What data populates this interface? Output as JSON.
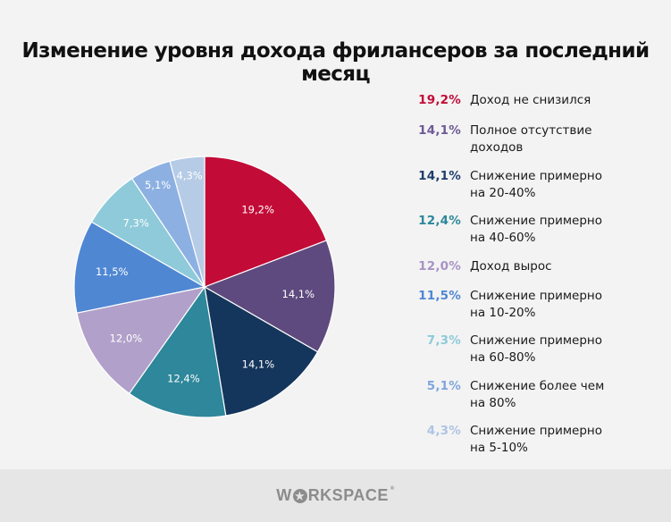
{
  "title": "Изменение уровня дохода фрилансеров за последний месяц",
  "footer": {
    "brand_pre": "W",
    "brand_post": "RKSPACE",
    "brand_reg": "®"
  },
  "chart_data": {
    "type": "pie",
    "title": "Изменение уровня дохода фрилансеров за последний месяц",
    "start_angle_deg": 0,
    "direction": "clockwise",
    "legend_position": "right",
    "slices": [
      {
        "label": "Доход не снизился",
        "value": 19.2,
        "value_label": "19,2%",
        "color": "#c20c37"
      },
      {
        "label": "Полное отсутствие доходов",
        "value": 14.1,
        "value_label": "14,1%",
        "color": "#5e4a7e"
      },
      {
        "label": "Снижение примерно на 20-40%",
        "value": 14.1,
        "value_label": "14,1%",
        "color": "#15365c"
      },
      {
        "label": "Снижение примерно на 40-60%",
        "value": 12.4,
        "value_label": "12,4%",
        "color": "#2e879a"
      },
      {
        "label": "Доход вырос",
        "value": 12.0,
        "value_label": "12,0%",
        "color": "#b1a0c9"
      },
      {
        "label": "Снижение примерно на 10-20%",
        "value": 11.5,
        "value_label": "11,5%",
        "color": "#4f87d3"
      },
      {
        "label": "Снижение примерно на 60-80%",
        "value": 7.3,
        "value_label": "7,3%",
        "color": "#8ecad9"
      },
      {
        "label": "Снижение более чем на 80%",
        "value": 5.1,
        "value_label": "5,1%",
        "color": "#8cb0e2"
      },
      {
        "label": "Снижение примерно на 5-10%",
        "value": 4.3,
        "value_label": "4,3%",
        "color": "#b6cbe6"
      }
    ]
  },
  "legend": {
    "items": [
      {
        "pct": "19,2%",
        "line1": "Доход не снизился",
        "line2": "",
        "color": "#c20c37"
      },
      {
        "pct": "14,1%",
        "line1": "Полное отсутствие",
        "line2": "доходов",
        "color": "#6e5a96"
      },
      {
        "pct": "14,1%",
        "line1": "Снижение примерно",
        "line2": "на 20-40%",
        "color": "#1d3d6b"
      },
      {
        "pct": "12,4%",
        "line1": "Снижение примерно",
        "line2": "на 40-60%",
        "color": "#2e879a"
      },
      {
        "pct": "12,0%",
        "line1": "Доход вырос",
        "line2": "",
        "color": "#a893c4"
      },
      {
        "pct": "11,5%",
        "line1": "Снижение примерно",
        "line2": "на 10-20%",
        "color": "#4f87d3"
      },
      {
        "pct": "7,3%",
        "line1": "Снижение примерно",
        "line2": "на 60-80%",
        "color": "#8ecad9"
      },
      {
        "pct": "5,1%",
        "line1": "Снижение более чем",
        "line2": "на 80%",
        "color": "#7fa6dd"
      },
      {
        "pct": "4,3%",
        "line1": "Снижение примерно",
        "line2": "на 5-10%",
        "color": "#aec4e3"
      }
    ]
  }
}
